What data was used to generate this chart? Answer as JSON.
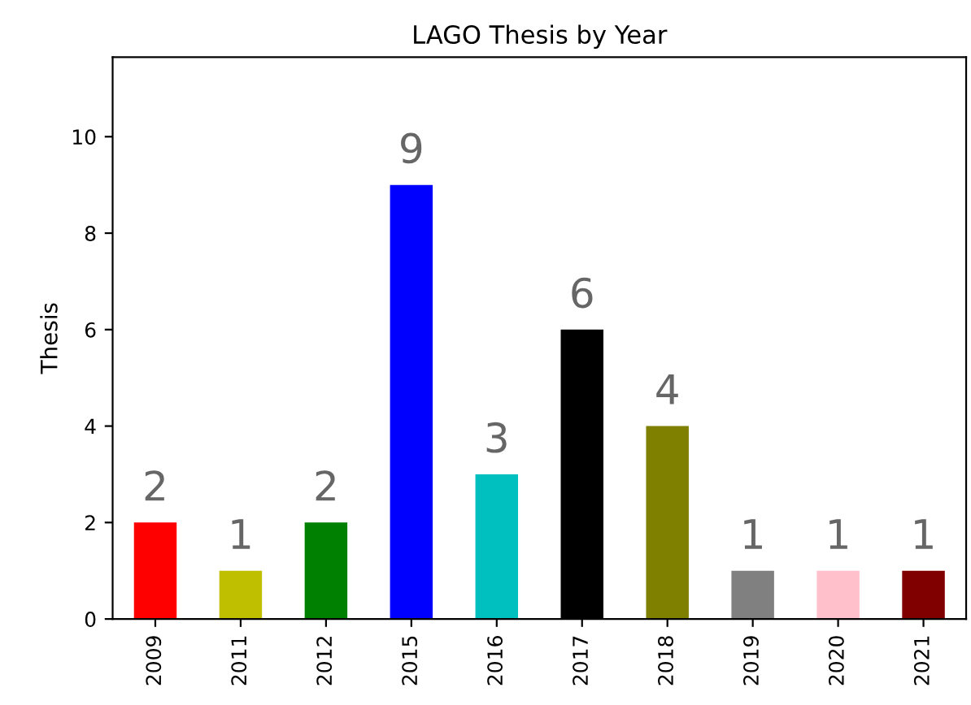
{
  "chart_data": {
    "type": "bar",
    "title": "LAGO Thesis by Year",
    "ylabel": "Thesis",
    "categories": [
      "2009",
      "2011",
      "2012",
      "2015",
      "2016",
      "2017",
      "2018",
      "2019",
      "2020",
      "2021"
    ],
    "values": [
      2,
      1,
      2,
      9,
      3,
      6,
      4,
      1,
      1,
      1
    ],
    "colors": [
      "#ff0000",
      "#bfbf00",
      "#008000",
      "#0000ff",
      "#00bfbf",
      "#000000",
      "#808000",
      "#808080",
      "#ffc0cb",
      "#800000"
    ],
    "ylim": [
      0,
      11.65
    ],
    "yticks": [
      0,
      2,
      4,
      6,
      8,
      10
    ],
    "data_labels": true,
    "grid": false
  }
}
